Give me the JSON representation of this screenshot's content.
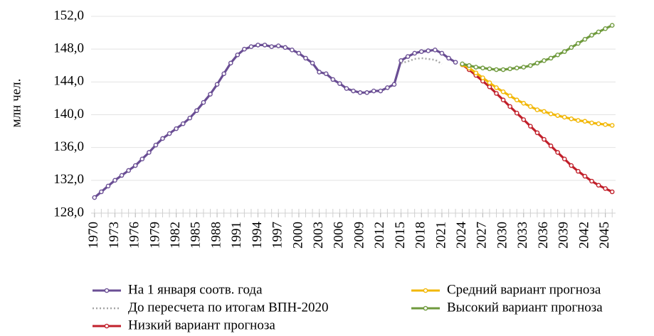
{
  "chart_data": {
    "type": "line",
    "y_label": "млн чел.",
    "x": [
      1970,
      1971,
      1972,
      1973,
      1974,
      1975,
      1976,
      1977,
      1978,
      1979,
      1980,
      1981,
      1982,
      1983,
      1984,
      1985,
      1986,
      1987,
      1988,
      1989,
      1990,
      1991,
      1992,
      1993,
      1994,
      1995,
      1996,
      1997,
      1998,
      1999,
      2000,
      2001,
      2002,
      2003,
      2004,
      2005,
      2006,
      2007,
      2008,
      2009,
      2010,
      2011,
      2012,
      2013,
      2014,
      2015,
      2016,
      2017,
      2018,
      2019,
      2020,
      2021,
      2022,
      2023,
      2024,
      2025,
      2026,
      2027,
      2028,
      2029,
      2030,
      2031,
      2032,
      2033,
      2034,
      2035,
      2036,
      2037,
      2038,
      2039,
      2040,
      2041,
      2042,
      2043,
      2044,
      2045,
      2046
    ],
    "xlim": [
      1969.5,
      2046.5
    ],
    "xticks": [
      1970,
      1973,
      1976,
      1979,
      1982,
      1985,
      1988,
      1991,
      1994,
      1997,
      2000,
      2003,
      2006,
      2009,
      2012,
      2015,
      2018,
      2021,
      2024,
      2027,
      2030,
      2033,
      2036,
      2039,
      2042,
      2045
    ],
    "ylim": [
      128,
      152
    ],
    "yticks": [
      {
        "value": 128,
        "label": "128,0"
      },
      {
        "value": 132,
        "label": "132,0"
      },
      {
        "value": 136,
        "label": "136,0"
      },
      {
        "value": 140,
        "label": "140,0"
      },
      {
        "value": 144,
        "label": "144,0"
      },
      {
        "value": 148,
        "label": "148,0"
      },
      {
        "value": 152,
        "label": "152,0"
      }
    ],
    "grid": true,
    "legend": "bottom",
    "series": [
      {
        "name": "На 1 января соотв. года",
        "color": "#6a4e94",
        "line_style": "solid",
        "markers": true,
        "values": [
          129.9,
          130.6,
          131.3,
          132.0,
          132.6,
          133.2,
          133.8,
          134.6,
          135.4,
          136.3,
          137.1,
          137.7,
          138.3,
          138.9,
          139.6,
          140.5,
          141.5,
          142.5,
          143.7,
          145.0,
          146.3,
          147.3,
          148.0,
          148.3,
          148.5,
          148.5,
          148.3,
          148.4,
          148.2,
          147.9,
          147.5,
          146.9,
          146.3,
          145.2,
          145.0,
          144.3,
          143.8,
          143.2,
          142.9,
          142.7,
          142.7,
          142.9,
          142.9,
          143.3,
          143.7,
          146.6,
          147.1,
          147.5,
          147.7,
          147.8,
          147.9,
          147.5,
          146.9,
          146.4,
          null,
          null,
          null,
          null,
          null,
          null,
          null,
          null,
          null,
          null,
          null,
          null,
          null,
          null,
          null,
          null,
          null,
          null,
          null,
          null,
          null,
          null,
          null
        ]
      },
      {
        "name": "До пересчета по итогам ВПН-2020",
        "color": "#a6a6a6",
        "line_style": "dotted",
        "markers": false,
        "values": [
          null,
          null,
          null,
          null,
          null,
          null,
          null,
          null,
          null,
          null,
          null,
          null,
          null,
          null,
          null,
          null,
          null,
          null,
          null,
          null,
          null,
          null,
          null,
          null,
          null,
          null,
          null,
          null,
          null,
          null,
          null,
          null,
          null,
          null,
          null,
          null,
          null,
          null,
          null,
          null,
          null,
          null,
          null,
          null,
          null,
          146.3,
          146.5,
          146.8,
          146.9,
          146.8,
          146.7,
          146.2,
          null,
          null,
          null,
          null,
          null,
          null,
          null,
          null,
          null,
          null,
          null,
          null,
          null,
          null,
          null,
          null,
          null,
          null,
          null,
          null,
          null,
          null,
          null,
          null,
          null
        ]
      },
      {
        "name": "Низкий вариант прогноза",
        "color": "#c1202b",
        "line_style": "solid",
        "markers": true,
        "values": [
          null,
          null,
          null,
          null,
          null,
          null,
          null,
          null,
          null,
          null,
          null,
          null,
          null,
          null,
          null,
          null,
          null,
          null,
          null,
          null,
          null,
          null,
          null,
          null,
          null,
          null,
          null,
          null,
          null,
          null,
          null,
          null,
          null,
          null,
          null,
          null,
          null,
          null,
          null,
          null,
          null,
          null,
          null,
          null,
          null,
          null,
          null,
          null,
          null,
          null,
          null,
          null,
          null,
          null,
          146.1,
          145.5,
          144.8,
          144.1,
          143.4,
          142.6,
          141.8,
          141.0,
          140.2,
          139.4,
          138.6,
          137.8,
          137.0,
          136.2,
          135.4,
          134.6,
          133.8,
          133.1,
          132.5,
          131.9,
          131.4,
          131.0,
          130.6
        ]
      },
      {
        "name": "Средний вариант прогноза",
        "color": "#f2b705",
        "line_style": "solid",
        "markers": true,
        "values": [
          null,
          null,
          null,
          null,
          null,
          null,
          null,
          null,
          null,
          null,
          null,
          null,
          null,
          null,
          null,
          null,
          null,
          null,
          null,
          null,
          null,
          null,
          null,
          null,
          null,
          null,
          null,
          null,
          null,
          null,
          null,
          null,
          null,
          null,
          null,
          null,
          null,
          null,
          null,
          null,
          null,
          null,
          null,
          null,
          null,
          null,
          null,
          null,
          null,
          null,
          null,
          null,
          null,
          null,
          146.1,
          145.7,
          145.1,
          144.5,
          143.9,
          143.3,
          142.8,
          142.3,
          141.8,
          141.4,
          141.0,
          140.6,
          140.4,
          140.1,
          139.9,
          139.7,
          139.5,
          139.3,
          139.2,
          139.0,
          138.9,
          138.8,
          138.7
        ]
      },
      {
        "name": "Высокий вариант прогноза",
        "color": "#6f9a3d",
        "line_style": "solid",
        "markers": true,
        "values": [
          null,
          null,
          null,
          null,
          null,
          null,
          null,
          null,
          null,
          null,
          null,
          null,
          null,
          null,
          null,
          null,
          null,
          null,
          null,
          null,
          null,
          null,
          null,
          null,
          null,
          null,
          null,
          null,
          null,
          null,
          null,
          null,
          null,
          null,
          null,
          null,
          null,
          null,
          null,
          null,
          null,
          null,
          null,
          null,
          null,
          null,
          null,
          null,
          null,
          null,
          null,
          null,
          null,
          null,
          146.2,
          146.0,
          145.8,
          145.7,
          145.6,
          145.5,
          145.5,
          145.6,
          145.7,
          145.8,
          146.0,
          146.3,
          146.6,
          146.9,
          147.3,
          147.7,
          148.2,
          148.7,
          149.2,
          149.7,
          150.1,
          150.5,
          150.9
        ]
      }
    ]
  }
}
